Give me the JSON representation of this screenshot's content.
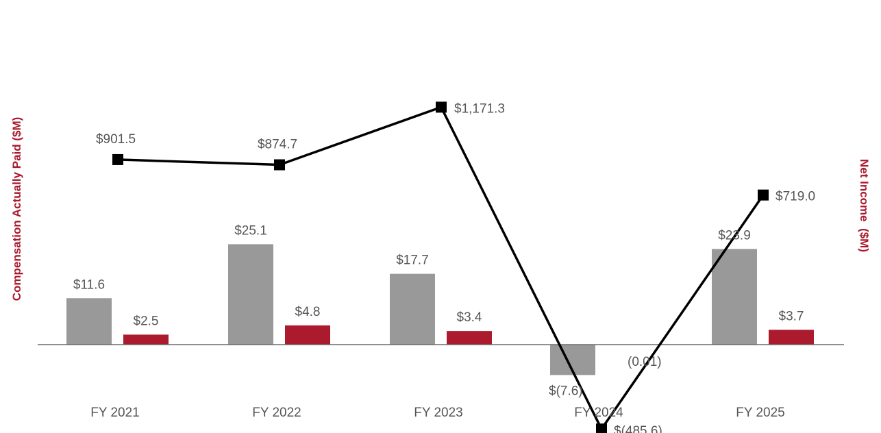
{
  "chart_data": {
    "type": "bar+line",
    "categories": [
      "FY 2021",
      "FY 2022",
      "FY 2023",
      "FY 2024",
      "FY 2025"
    ],
    "series": [
      {
        "axis": "left",
        "kind": "bar",
        "color": "#999999",
        "values": [
          11.6,
          25.1,
          17.7,
          -7.6,
          23.9
        ],
        "labels": [
          "$11.6",
          "$25.1",
          "$17.7",
          "$(7.6)",
          "$23.9"
        ]
      },
      {
        "axis": "left",
        "kind": "bar",
        "color": "#ab1a2d",
        "values": [
          2.5,
          4.8,
          3.4,
          -0.01,
          3.7
        ],
        "labels": [
          "$2.5",
          "$4.8",
          "$3.4",
          "(0.01)",
          "$3.7"
        ]
      },
      {
        "axis": "right",
        "kind": "line",
        "color": "#000000",
        "values": [
          901.5,
          874.7,
          1171.3,
          -485.6,
          719.0
        ],
        "labels": [
          "$901.5",
          "$874.7",
          "$1,171.3",
          "$(485.6)",
          "$719.0"
        ]
      }
    ],
    "ylabel": "Compensation Actually Paid ($M)",
    "y2label": "Net Income  ($M)",
    "ylabel_color": "#ab1a2d",
    "y2label_color": "#ab1a2d",
    "ylim": [
      -10,
      60
    ],
    "y2lim": [
      -600,
      2700
    ],
    "grid": false,
    "legend": "none"
  }
}
